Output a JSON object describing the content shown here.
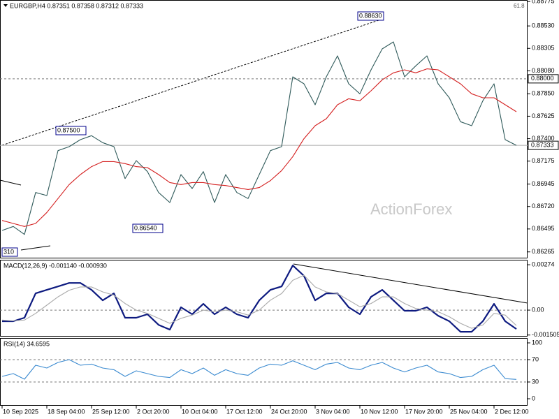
{
  "chart_data": [
    {
      "type": "line",
      "title": "EURGBP,H4 0.87351 0.87358 0.87312 0.87333",
      "ylim": [
        0.862,
        0.8879
      ],
      "yticks": [
        0.88775,
        {
          "value": 0.8853,
          "label": "0.88530"
        },
        0.88305,
        {
          "value": 0.8808,
          "label": "0.88080"
        },
        {
          "value": 0.8785,
          "label": "0.87850"
        },
        0.87625,
        {
          "value": 0.874,
          "label": "0.87400"
        },
        0.87175,
        0.86945,
        {
          "value": 0.8672,
          "label": "0.86720"
        },
        0.86495,
        0.86265
      ],
      "levels": [
        {
          "value": 0.88,
          "label": "0.88000"
        },
        {
          "value": 0.87333,
          "label": "0.87333"
        }
      ],
      "annotations": [
        "0.88630",
        "0.87500",
        "0.86540",
        "310",
        "61.8",
        "ActionForex"
      ],
      "series": [
        {
          "color": "#2f5a5a",
          "values": [
            0.8648,
            0.8652,
            0.8644,
            0.8686,
            0.8683,
            0.8728,
            0.8732,
            0.8739,
            0.8743,
            0.8736,
            0.8732,
            0.87,
            0.8718,
            0.8707,
            0.8686,
            0.8676,
            0.8704,
            0.869,
            0.8707,
            0.8676,
            0.8704,
            0.8686,
            0.868,
            0.8704,
            0.8728,
            0.8732,
            0.8802,
            0.8795,
            0.8774,
            0.8802,
            0.8823,
            0.8795,
            0.8785,
            0.8809,
            0.883,
            0.8837,
            0.8802,
            0.8813,
            0.8823,
            0.8795,
            0.8781,
            0.8757,
            0.8753,
            0.8778,
            0.8795,
            0.8739,
            0.87333
          ]
        },
        {
          "color": "#d42020",
          "values": [
            0.8658,
            0.8655,
            0.8652,
            0.8655,
            0.8666,
            0.868,
            0.8694,
            0.8704,
            0.8712,
            0.8717,
            0.8717,
            0.8715,
            0.8712,
            0.8711,
            0.8704,
            0.8696,
            0.8694,
            0.8696,
            0.8696,
            0.8694,
            0.8693,
            0.8691,
            0.8689,
            0.8691,
            0.8698,
            0.8708,
            0.8722,
            0.874,
            0.8753,
            0.876,
            0.8774,
            0.878,
            0.8778,
            0.8788,
            0.8799,
            0.8806,
            0.8809,
            0.8806,
            0.881,
            0.8809,
            0.8802,
            0.8795,
            0.8785,
            0.8781,
            0.8781,
            0.8774,
            0.8767
          ]
        }
      ]
    },
    {
      "type": "line",
      "title": "MACD(12,26,9) -0.001140 -0.000930",
      "ylim": [
        -0.0016,
        0.00304
      ],
      "yticks": [
        0.00274,
        {
          "value": 0,
          "label": "0.00"
        },
        -0.001505
      ],
      "levels": [
        0
      ],
      "series": [
        {
          "color": "#0d1a80",
          "values": [
            -0.00067,
            -0.00067,
            -0.00046,
            0.00101,
            0.00122,
            0.00143,
            0.00164,
            0.00164,
            0.00122,
            0.00059,
            0.00101,
            -0.00046,
            -0.00046,
            -0.00025,
            -0.00089,
            -0.00118,
            0.00017,
            -0.00025,
            0.00038,
            -0.00025,
            0.00017,
            -0.00025,
            -0.00046,
            0.00059,
            0.00122,
            0.00143,
            0.0027,
            0.00207,
            0.00059,
            0.00101,
            0.00101,
            0.00017,
            -0.00025,
            0.0008,
            0.00122,
            0.00059,
            -4e-05,
            -4e-05,
            0.00017,
            -0.00034,
            -0.00067,
            -0.00131,
            -0.00131,
            -0.00067,
            0.00038,
            -0.00067,
            -0.00114
          ]
        },
        {
          "color": "#aaaaaa",
          "values": [
            -0.0006,
            -0.00065,
            -0.0006,
            -0.0002,
            0.0003,
            0.0008,
            0.0012,
            0.0014,
            0.0014,
            0.0011,
            0.0009,
            0.0004,
            0,
            -0.0002,
            -0.0005,
            -0.0008,
            -0.0005,
            -0.0003,
            0,
            -0.0001,
            0,
            -0.0001,
            -0.0003,
            0,
            0.0006,
            0.001,
            0.0018,
            0.0021,
            0.0014,
            0.0011,
            0.001,
            0.0006,
            0.0002,
            0.0004,
            0.0008,
            0.0008,
            0.0004,
            0.0001,
            0,
            -0.0001,
            -0.0004,
            -0.0008,
            -0.0011,
            -0.0009,
            -0.0002,
            -0.0003,
            -0.00093
          ]
        }
      ]
    },
    {
      "type": "line",
      "title": "RSI(14) 34.6595",
      "ylim": [
        -12.5,
        108.75
      ],
      "yticks": [
        100,
        70,
        30,
        0
      ],
      "levels": [
        70,
        30
      ],
      "categories": [
        "10 Sep 2025",
        null,
        null,
        null,
        "18 Sep 04:00",
        null,
        null,
        null,
        "25 Sep 12:00",
        null,
        null,
        null,
        "2 Oct 20:00",
        null,
        null,
        null,
        "10 Oct 04:00",
        null,
        null,
        null,
        "17 Oct 12:00",
        null,
        null,
        null,
        "24 Oct 20:00",
        null,
        null,
        null,
        "3 Nov 04:00",
        null,
        null,
        null,
        "10 Nov 12:00",
        null,
        null,
        null,
        "17 Nov 20:00",
        null,
        null,
        null,
        "25 Nov 04:00",
        null,
        null,
        null,
        "2 Dec 12:00",
        null,
        null
      ],
      "series": [
        {
          "color": "#3a8ad0",
          "values": [
            40,
            45,
            35,
            60,
            55,
            65,
            70,
            60,
            62,
            55,
            52,
            40,
            50,
            45,
            40,
            38,
            52,
            45,
            55,
            42,
            52,
            45,
            42,
            55,
            62,
            60,
            68,
            60,
            52,
            62,
            65,
            55,
            52,
            60,
            65,
            55,
            48,
            55,
            60,
            48,
            45,
            38,
            40,
            52,
            60,
            36,
            34.6595
          ]
        }
      ]
    }
  ]
}
